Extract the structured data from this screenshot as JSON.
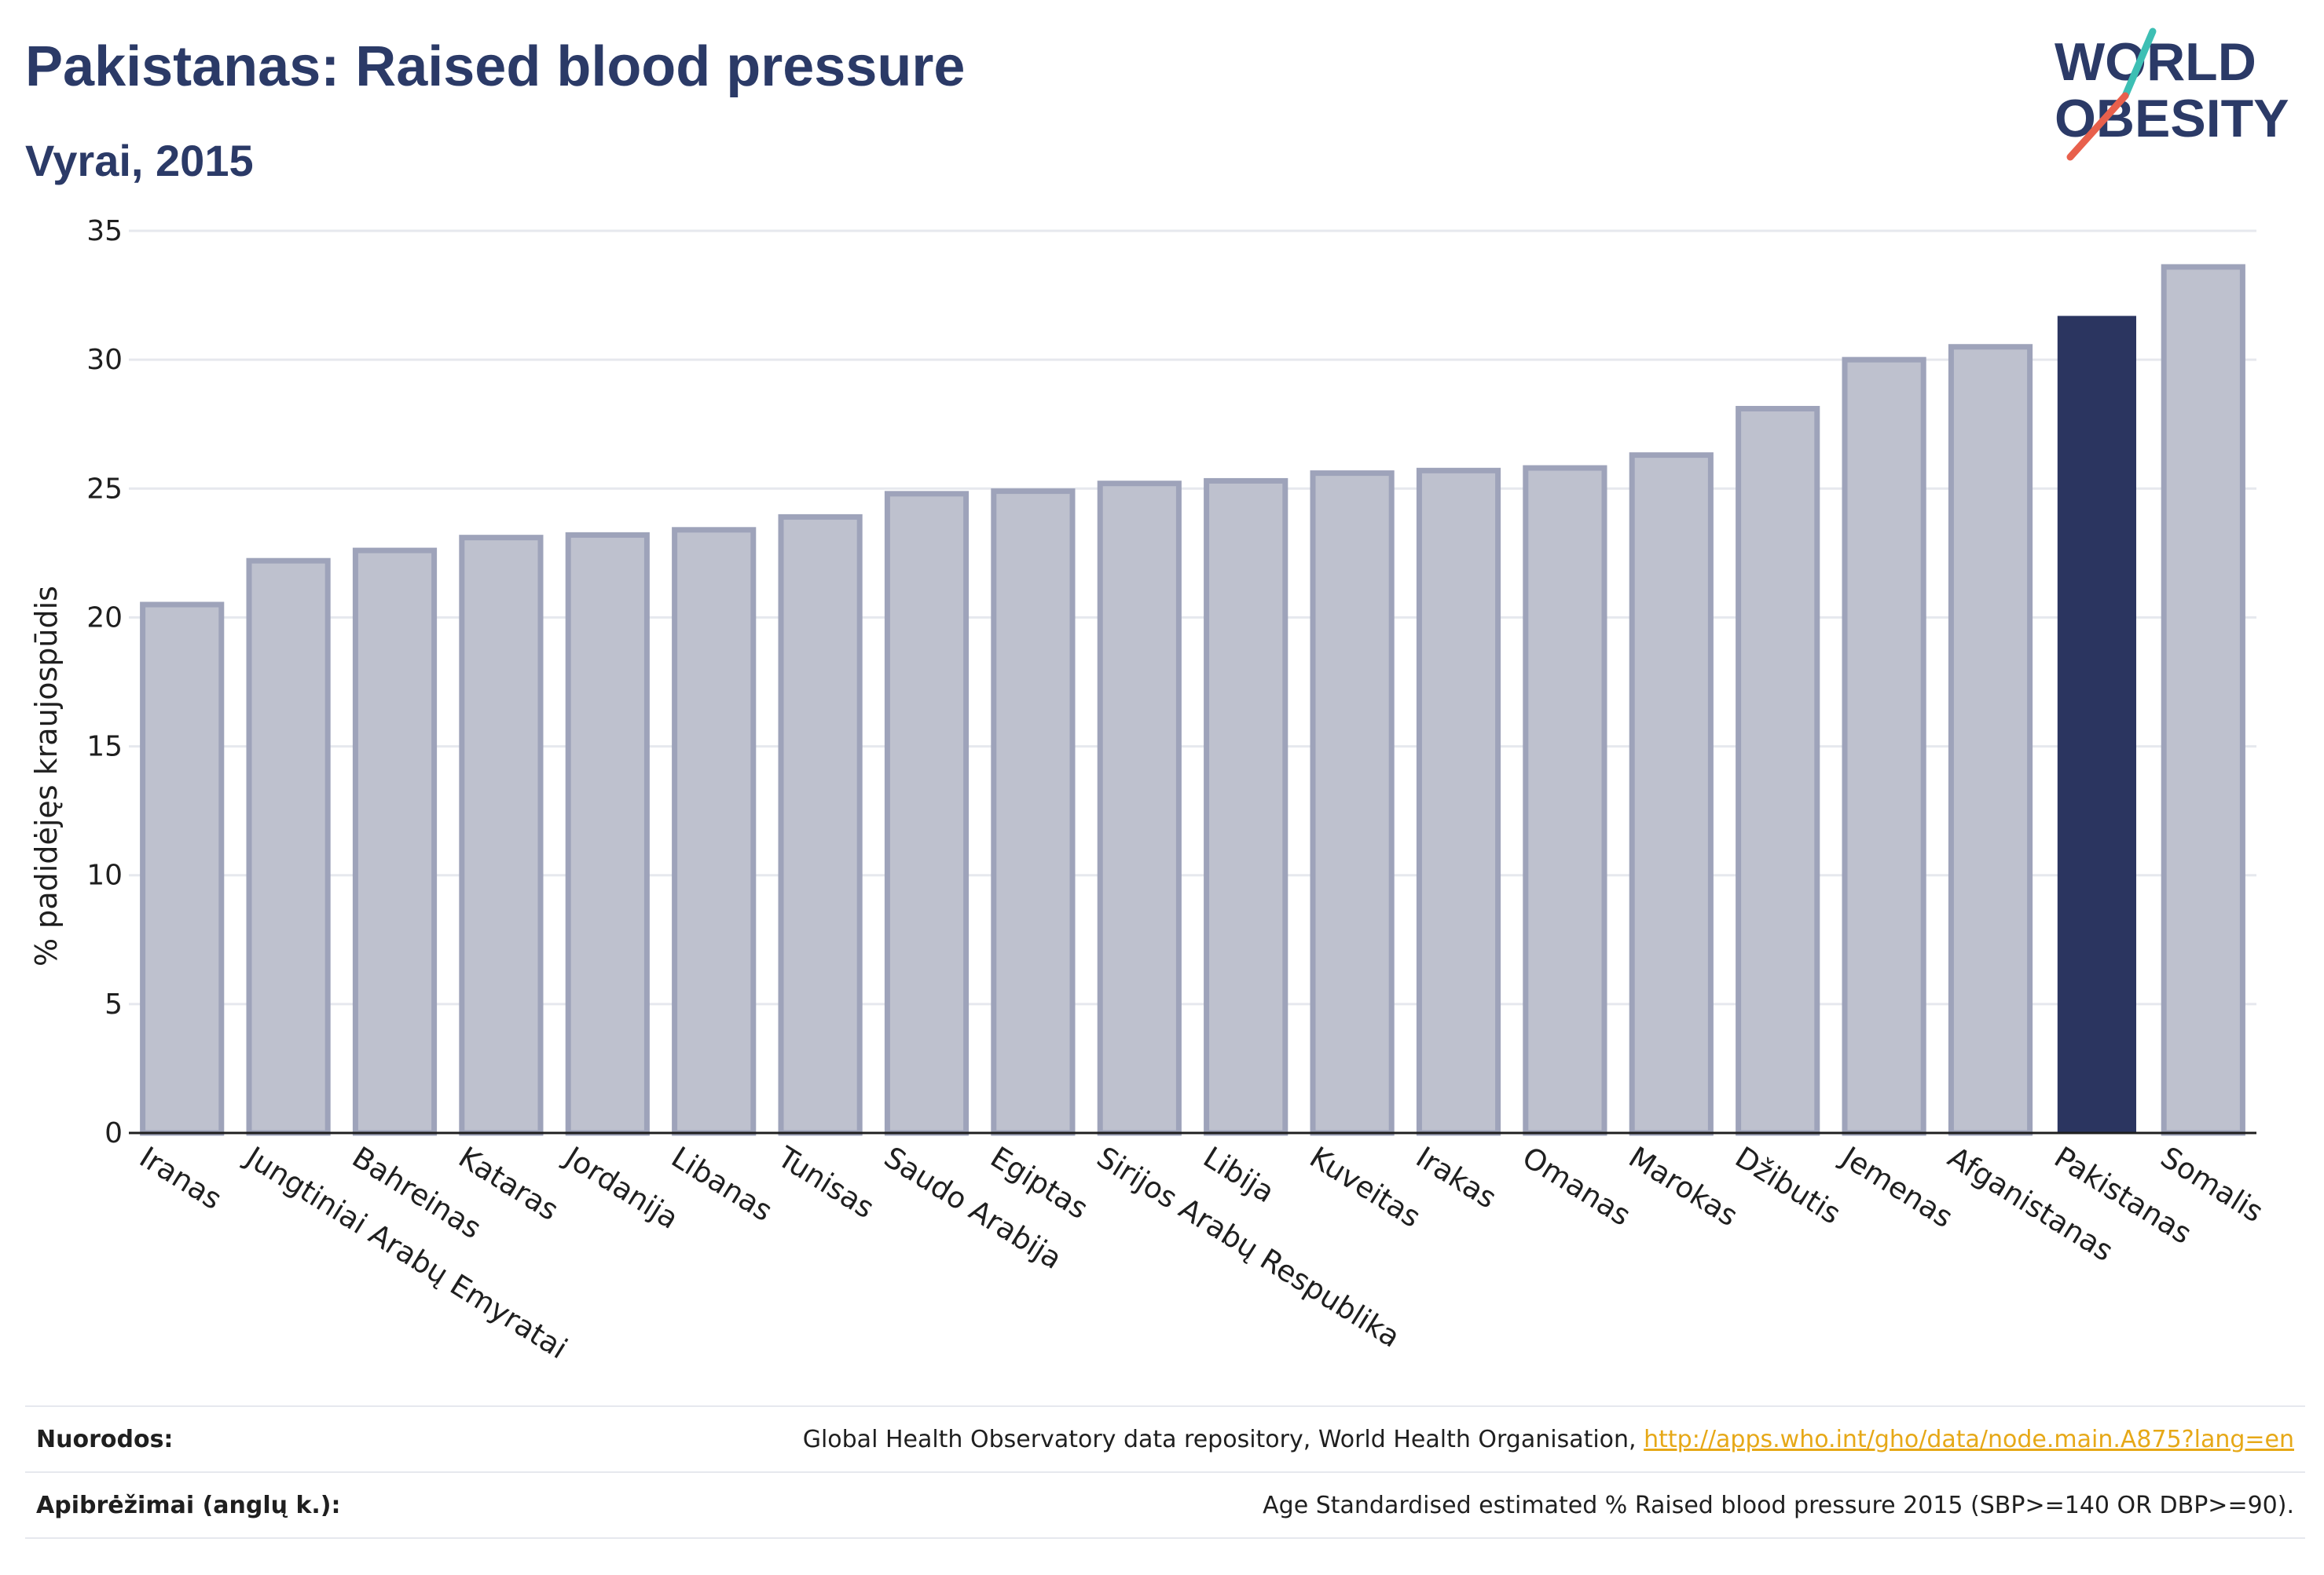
{
  "title": "Pakistanas: Raised blood pressure",
  "subtitle": "Vyrai, 2015",
  "logo": {
    "line1": "WORLD",
    "line2": "OBESITY",
    "text_color": "#2b3a67",
    "slash_colors": [
      "#3dbfb4",
      "#e8604c"
    ]
  },
  "colors": {
    "bar_default": "#bec1ce",
    "bar_default_stroke": "#9ea3ba",
    "bar_highlight": "#2b3560",
    "grid": "#e6e8ee",
    "axis": "#1f1f1f"
  },
  "chart_data": {
    "type": "bar",
    "categories": [
      "Iranas",
      "Jungtiniai Arabų Emyratai",
      "Bahreinas",
      "Kataras",
      "Jordanija",
      "Libanas",
      "Tunisas",
      "Saudo Arabija",
      "Egiptas",
      "Sirijos Arabų Respublika",
      "Libija",
      "Kuveitas",
      "Irakas",
      "Omanas",
      "Marokas",
      "Džibutis",
      "Jemenas",
      "Afganistanas",
      "Pakistanas",
      "Somalis"
    ],
    "values": [
      20.5,
      22.2,
      22.6,
      23.1,
      23.2,
      23.4,
      23.9,
      24.8,
      24.9,
      25.2,
      25.3,
      25.6,
      25.7,
      25.8,
      26.3,
      28.1,
      30.0,
      30.5,
      31.7,
      33.6
    ],
    "highlight": "Pakistanas",
    "ylabel": "% padidėjęs kraujospūdis",
    "xlabel": "",
    "ylim": [
      0,
      35
    ],
    "yticks": [
      0,
      5,
      10,
      15,
      20,
      25,
      30,
      35
    ],
    "grid": true
  },
  "footer": {
    "sources_label": "Nuorodos:",
    "sources_text": "Global Health Observatory data repository, World Health Organisation,",
    "sources_link": "http://apps.who.int/gho/data/node.main.A875?lang=en",
    "definitions_label": "Apibrėžimai (anglų k.):",
    "definitions_text": "Age Standardised estimated % Raised blood pressure 2015 (SBP>=140 OR DBP>=90)."
  }
}
